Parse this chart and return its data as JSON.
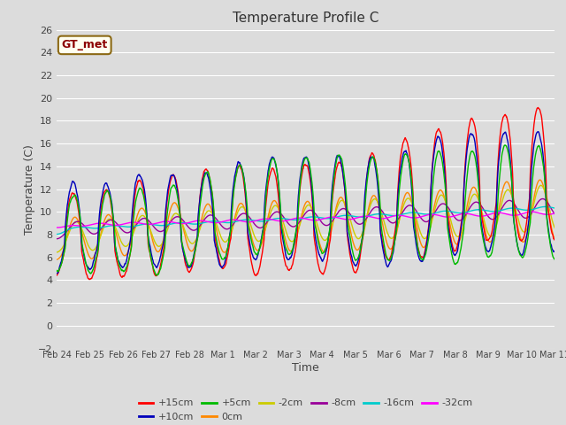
{
  "title": "Temperature Profile C",
  "xlabel": "Time",
  "ylabel": "Temperature (C)",
  "ylim": [
    -2,
    26
  ],
  "background_color": "#dcdcdc",
  "grid_color": "#ffffff",
  "legend_label": "GT_met",
  "legend_bg": "#fffff0",
  "legend_border": "#8B6914",
  "legend_text_color": "#8B0000",
  "series_colors": {
    "+15cm": "#ff0000",
    "+10cm": "#0000bb",
    "+5cm": "#00bb00",
    "0cm": "#ff8800",
    "-2cm": "#cccc00",
    "-8cm": "#990099",
    "-16cm": "#00cccc",
    "-32cm": "#ff00ff"
  },
  "xtick_labels": [
    "Feb 24",
    "Feb 25",
    "Feb 26",
    "Feb 27",
    "Feb 28",
    "Mar 1",
    "Mar 2",
    "Mar 3",
    "Mar 4",
    "Mar 5",
    "Mar 6",
    "Mar 7",
    "Mar 8",
    "Mar 9",
    "Mar 10",
    "Mar 11"
  ],
  "ytick_values": [
    -2,
    0,
    2,
    4,
    6,
    8,
    10,
    12,
    14,
    16,
    18,
    20,
    22,
    24,
    26
  ],
  "n_points": 1440,
  "days": 16
}
